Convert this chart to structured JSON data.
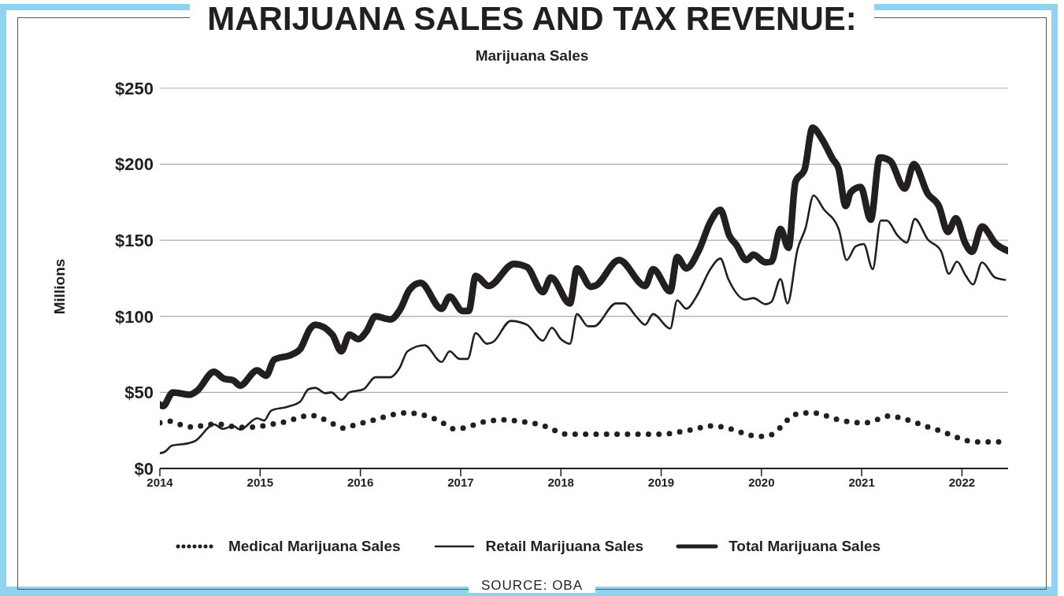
{
  "chart_data": {
    "type": "line",
    "title": "MARIJUANA SALES AND TAX REVENUE:",
    "subtitle": "Marijuana Sales",
    "ylabel": "Millions",
    "xlim": [
      2014,
      2022.46
    ],
    "xticks": [
      2014,
      2015,
      2016,
      2017,
      2018,
      2019,
      2020,
      2021,
      2022
    ],
    "ylim": [
      0,
      250
    ],
    "yticks": [
      {
        "value": 0,
        "label": "$0"
      },
      {
        "value": 50,
        "label": "$50"
      },
      {
        "value": 100,
        "label": "$100"
      },
      {
        "value": 150,
        "label": "$150"
      },
      {
        "value": 200,
        "label": "$200"
      },
      {
        "value": 250,
        "label": "$250"
      }
    ],
    "grid": "y",
    "legend": "bottom",
    "marker": "none",
    "annotations": [
      "SOURCE: OBA"
    ],
    "series": [
      {
        "name": "Medical Marijuana Sales",
        "color": "#231f20",
        "line_style": "dotted",
        "x": [
          2014.0,
          2014.1,
          2014.22,
          2014.35,
          2014.47,
          2014.6,
          2014.73,
          2014.86,
          2014.98,
          2015.11,
          2015.24,
          2015.37,
          2015.5,
          2015.61,
          2015.72,
          2015.84,
          2015.96,
          2016.09,
          2016.22,
          2016.33,
          2016.46,
          2016.6,
          2016.71,
          2016.82,
          2016.94,
          2017.06,
          2017.19,
          2017.32,
          2017.45,
          2017.58,
          2017.7,
          2017.83,
          2017.94,
          2018.06,
          2018.19,
          2018.44,
          2018.7,
          2018.95,
          2019.09,
          2019.22,
          2019.35,
          2019.47,
          2019.59,
          2019.72,
          2019.85,
          2019.97,
          2020.09,
          2020.19,
          2020.28,
          2020.4,
          2020.53,
          2020.65,
          2020.77,
          2020.9,
          2021.03,
          2021.15,
          2021.28,
          2021.4,
          2021.52,
          2021.65,
          2021.77,
          2021.89,
          2022.01,
          2022.13,
          2022.26,
          2022.38
        ],
        "values": [
          30,
          31,
          28.5,
          27,
          29,
          29,
          27.5,
          27,
          27.5,
          29,
          30.5,
          33,
          35,
          33,
          29.5,
          26.5,
          29,
          31,
          33.5,
          35.5,
          36.5,
          35.5,
          33.5,
          30,
          26,
          27,
          30,
          31.5,
          32,
          31,
          30,
          28,
          25,
          22.5,
          22.5,
          22.5,
          22.5,
          22.5,
          23,
          24.5,
          26,
          28,
          27.5,
          25.5,
          22.5,
          21,
          22,
          27,
          33,
          36.5,
          36.5,
          34.5,
          32,
          30.5,
          30,
          32,
          34.5,
          33,
          30.5,
          27.5,
          25,
          22,
          19,
          17.5,
          17.5,
          17.5
        ]
      },
      {
        "name": "Retail Marijuana Sales",
        "color": "#231f20",
        "line_style": "solid",
        "x": [
          2014.0,
          2014.05,
          2014.12,
          2014.28,
          2014.35,
          2014.54,
          2014.63,
          2014.73,
          2014.8,
          2014.97,
          2015.04,
          2015.11,
          2015.27,
          2015.4,
          2015.48,
          2015.55,
          2015.65,
          2015.71,
          2015.81,
          2015.89,
          2016.03,
          2016.15,
          2016.3,
          2016.39,
          2016.47,
          2016.64,
          2016.81,
          2016.89,
          2016.99,
          2017.07,
          2017.15,
          2017.26,
          2017.32,
          2017.5,
          2017.66,
          2017.82,
          2017.91,
          2018.0,
          2018.09,
          2018.16,
          2018.27,
          2018.33,
          2018.55,
          2018.63,
          2018.75,
          2018.84,
          2018.92,
          2019.09,
          2019.16,
          2019.25,
          2019.36,
          2019.49,
          2019.59,
          2019.67,
          2019.84,
          2019.92,
          2020.04,
          2020.1,
          2020.19,
          2020.26,
          2020.36,
          2020.44,
          2020.52,
          2020.62,
          2020.77,
          2020.85,
          2020.94,
          2021.02,
          2021.11,
          2021.19,
          2021.25,
          2021.36,
          2021.45,
          2021.53,
          2021.66,
          2021.79,
          2021.87,
          2021.95,
          2022.04,
          2022.11,
          2022.2,
          2022.33,
          2022.43
        ],
        "values": [
          10,
          11,
          15,
          16.5,
          18,
          29,
          26,
          28,
          25.5,
          33,
          31.5,
          38,
          40.5,
          44,
          52,
          53,
          49.5,
          50,
          45,
          50,
          52,
          60,
          60,
          66,
          77,
          81,
          70,
          77,
          72,
          72,
          89,
          82,
          83,
          97,
          94.5,
          84,
          92.5,
          85,
          82,
          101.5,
          93.5,
          93.5,
          108.5,
          108.5,
          100,
          94.5,
          101.5,
          92,
          110.5,
          105,
          114,
          131,
          138,
          124.5,
          111,
          112,
          108,
          109.5,
          124.5,
          108.5,
          144,
          158,
          179.5,
          170.5,
          157.5,
          137,
          146,
          147.5,
          131,
          163,
          163,
          153,
          148.5,
          164,
          150.5,
          143,
          128,
          136,
          126.5,
          121,
          135.5,
          125.5,
          124
        ]
      },
      {
        "name": "Total Marijuana Sales",
        "color": "#231f20",
        "line_style": "solid",
        "x": [
          2014.0,
          2014.03,
          2014.13,
          2014.3,
          2014.37,
          2014.54,
          2014.64,
          2014.73,
          2014.8,
          2014.97,
          2015.06,
          2015.14,
          2015.32,
          2015.4,
          2015.5,
          2015.55,
          2015.72,
          2015.81,
          2015.89,
          2015.98,
          2016.06,
          2016.15,
          2016.3,
          2016.4,
          2016.49,
          2016.6,
          2016.81,
          2016.89,
          2017.02,
          2017.08,
          2017.15,
          2017.28,
          2017.53,
          2017.66,
          2017.82,
          2017.9,
          2018.09,
          2018.16,
          2018.3,
          2018.34,
          2018.58,
          2018.84,
          2018.92,
          2019.09,
          2019.16,
          2019.25,
          2019.38,
          2019.49,
          2019.59,
          2019.68,
          2019.75,
          2019.85,
          2019.92,
          2020.04,
          2020.1,
          2020.19,
          2020.27,
          2020.34,
          2020.43,
          2020.51,
          2020.6,
          2020.71,
          2020.77,
          2020.84,
          2020.89,
          2020.99,
          2021.09,
          2021.18,
          2021.28,
          2021.43,
          2021.52,
          2021.66,
          2021.77,
          2021.86,
          2021.94,
          2022.03,
          2022.1,
          2022.2,
          2022.34,
          2022.46
        ],
        "values": [
          42,
          41,
          50,
          48.5,
          51,
          63.5,
          59,
          58,
          54.5,
          64.5,
          61,
          71.5,
          75,
          78.5,
          92,
          94.5,
          88,
          77,
          88,
          85,
          90,
          100,
          98,
          105,
          117.5,
          122,
          105,
          113,
          103.5,
          103.5,
          126.5,
          120,
          134.5,
          132.5,
          116,
          125.5,
          108.5,
          131.5,
          119.5,
          120,
          137,
          120,
          131,
          116.5,
          139,
          131.5,
          144,
          162,
          170,
          153,
          147,
          137,
          140.5,
          135.5,
          136,
          157.5,
          145,
          188.5,
          196.5,
          224,
          217,
          203.5,
          197,
          172.5,
          181.5,
          185,
          163.5,
          204.5,
          202.5,
          184,
          200,
          180.5,
          172.5,
          155.5,
          164.5,
          148.5,
          142.5,
          159,
          147.5,
          143
        ]
      }
    ]
  }
}
